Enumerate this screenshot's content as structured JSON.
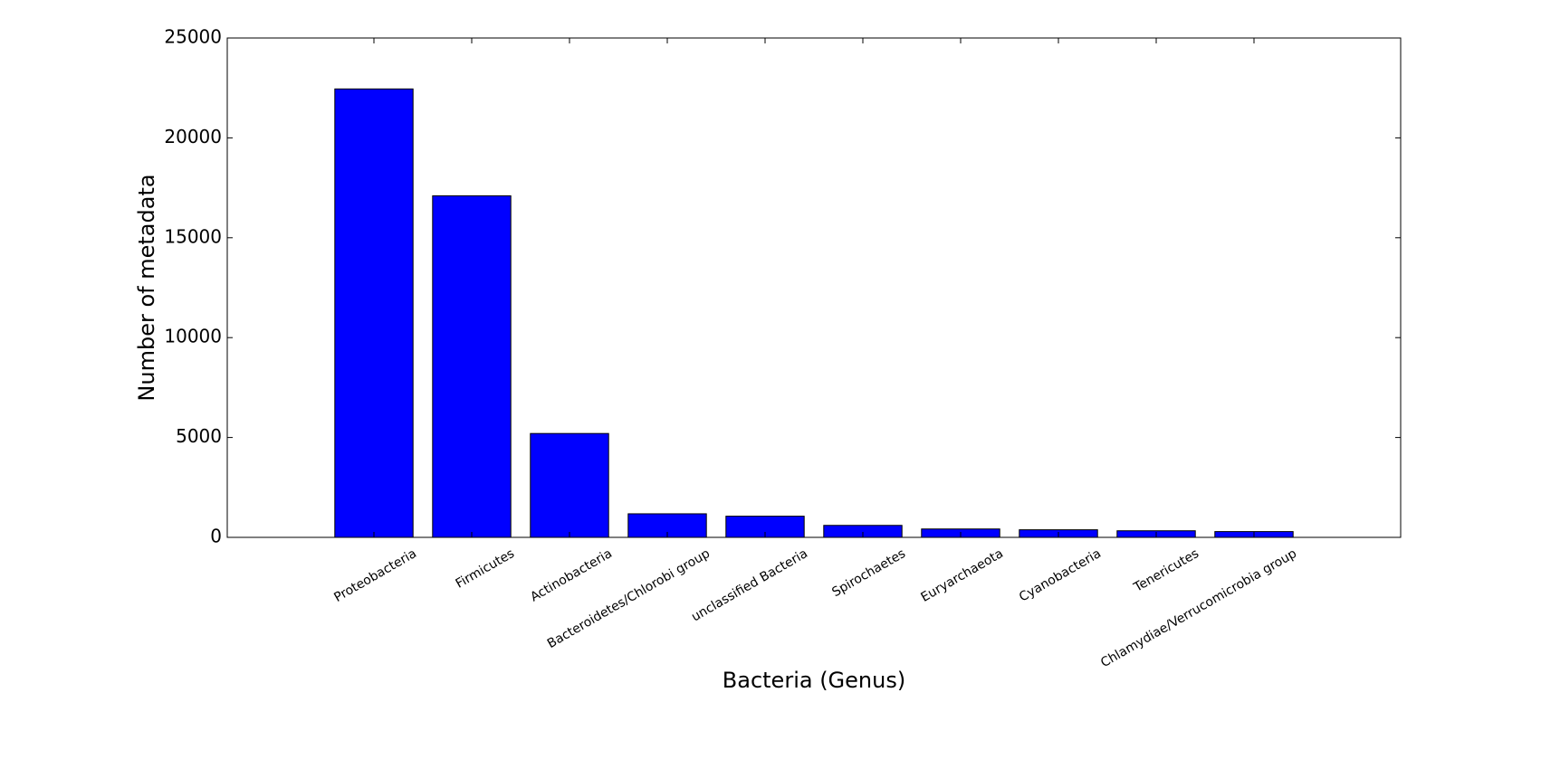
{
  "chart_data": {
    "type": "bar",
    "categories": [
      "Proteobacteria",
      "Firmicutes",
      "Actinobacteria",
      "Bacteroidetes/Chlorobi group",
      "unclassified Bacteria",
      "Spirochaetes",
      "Euryarchaeota",
      "Cyanobacteria",
      "Tenericutes",
      "Chlamydiae/Verrucomicrobia group"
    ],
    "values": [
      22450,
      17100,
      5200,
      1180,
      1060,
      600,
      420,
      380,
      330,
      290
    ],
    "xlabel": "Bacteria (Genus)",
    "ylabel": "Number of metadata",
    "ylim": [
      0,
      25000
    ],
    "yticks": [
      0,
      5000,
      10000,
      15000,
      20000,
      25000
    ],
    "xlim": [
      -1.5,
      10.5
    ],
    "bar_color": "#0000ff",
    "grid": false,
    "legend": "none"
  }
}
